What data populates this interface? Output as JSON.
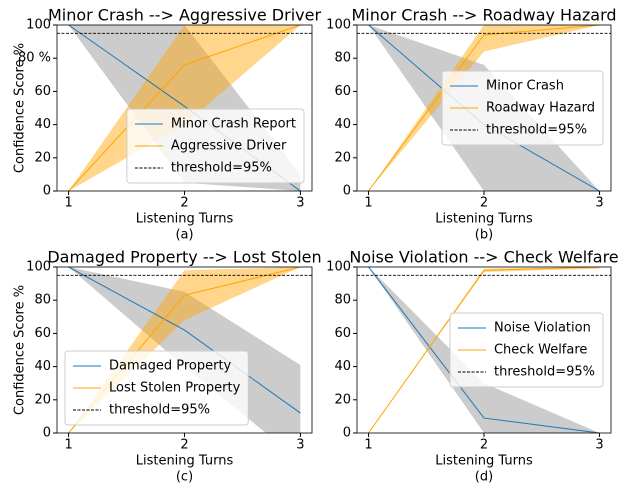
{
  "chart_data": [
    {
      "type": "line",
      "title": "Minor Crash --> Aggressive Driver",
      "xlabel": "Listening Turns",
      "ylabel": "Confidence Score %",
      "caption": "(a)",
      "x": [
        1,
        2,
        3
      ],
      "xlim": [
        0.9,
        3.1
      ],
      "xticks": [
        1,
        2,
        3
      ],
      "ylim": [
        0,
        100
      ],
      "yticks": [
        0,
        20,
        40,
        60,
        {
          "value": 80,
          "label": "80 %"
        },
        100
      ],
      "legend": "lower right",
      "threshold": {
        "value": 95,
        "label": "threshold=95%"
      },
      "series": [
        {
          "name": "Minor Crash Report",
          "color": "#1f77b4",
          "band_color": "#808080",
          "values": [
            100,
            51,
            0
          ],
          "lower": [
            100,
            5,
            0
          ],
          "upper": [
            100,
            100,
            10
          ]
        },
        {
          "name": "Aggressive Driver",
          "color": "#ffa500",
          "band_color": "#ffa500",
          "values": [
            0,
            76,
            100
          ],
          "lower": [
            0,
            40,
            100
          ],
          "upper": [
            0,
            100,
            100
          ]
        }
      ]
    },
    {
      "type": "line",
      "title": "Minor Crash --> Roadway Hazard",
      "xlabel": "Listening Turns",
      "caption": "(b)",
      "x": [
        1,
        2,
        3
      ],
      "xlim": [
        0.9,
        3.1
      ],
      "xticks": [
        1,
        2,
        3
      ],
      "ylim": [
        0,
        100
      ],
      "yticks": [
        0,
        20,
        40,
        60,
        80,
        100
      ],
      "legend": "center right",
      "threshold": {
        "value": 95,
        "label": "threshold=95%"
      },
      "series": [
        {
          "name": "Minor Crash",
          "color": "#1f77b4",
          "band_color": "#808080",
          "values": [
            100,
            40,
            0
          ],
          "lower": [
            100,
            0,
            0
          ],
          "upper": [
            100,
            76,
            0
          ]
        },
        {
          "name": "Roadway Hazard",
          "color": "#ffa500",
          "band_color": "#ffa500",
          "values": [
            0,
            94,
            100
          ],
          "lower": [
            0,
            84,
            100
          ],
          "upper": [
            0,
            100,
            100
          ]
        }
      ]
    },
    {
      "type": "line",
      "title": "Damaged Property --> Lost Stolen",
      "xlabel": "Listening Turns",
      "ylabel": "Confidence Score %",
      "caption": "(c)",
      "x": [
        1,
        2,
        3
      ],
      "xlim": [
        0.9,
        3.1
      ],
      "xticks": [
        1,
        2,
        3
      ],
      "ylim": [
        0,
        100
      ],
      "yticks": [
        0,
        20,
        40,
        60,
        80,
        100
      ],
      "legend": "lower left",
      "threshold": {
        "value": 95,
        "label": "threshold=95%"
      },
      "series": [
        {
          "name": "Damaged Property",
          "color": "#1f77b4",
          "band_color": "#808080",
          "values": [
            100,
            62,
            12
          ],
          "lower": [
            100,
            40,
            -17
          ],
          "upper": [
            100,
            85,
            41
          ]
        },
        {
          "name": "Lost Stolen Property",
          "color": "#ffa500",
          "band_color": "#ffa500",
          "values": [
            0,
            83,
            100
          ],
          "lower": [
            0,
            68,
            100
          ],
          "upper": [
            0,
            98,
            100
          ]
        }
      ]
    },
    {
      "type": "line",
      "title": "Noise Violation --> Check Welfare",
      "xlabel": "Listening Turns",
      "caption": "(d)",
      "x": [
        1,
        2,
        3
      ],
      "xlim": [
        0.9,
        3.1
      ],
      "xticks": [
        1,
        2,
        3
      ],
      "ylim": [
        0,
        100
      ],
      "yticks": [
        0,
        20,
        40,
        60,
        80,
        100
      ],
      "legend": "center right",
      "threshold": {
        "value": 95,
        "label": "threshold=95%"
      },
      "series": [
        {
          "name": "Noise Violation",
          "color": "#1f77b4",
          "band_color": "#808080",
          "values": [
            100,
            9,
            0
          ],
          "lower": [
            100,
            0,
            0
          ],
          "upper": [
            100,
            30,
            0
          ]
        },
        {
          "name": "Check Welfare",
          "color": "#ffa500",
          "band_color": "#ffa500",
          "values": [
            0,
            98,
            100
          ],
          "lower": [
            0,
            97,
            99
          ],
          "upper": [
            0,
            99,
            100
          ]
        }
      ]
    }
  ]
}
